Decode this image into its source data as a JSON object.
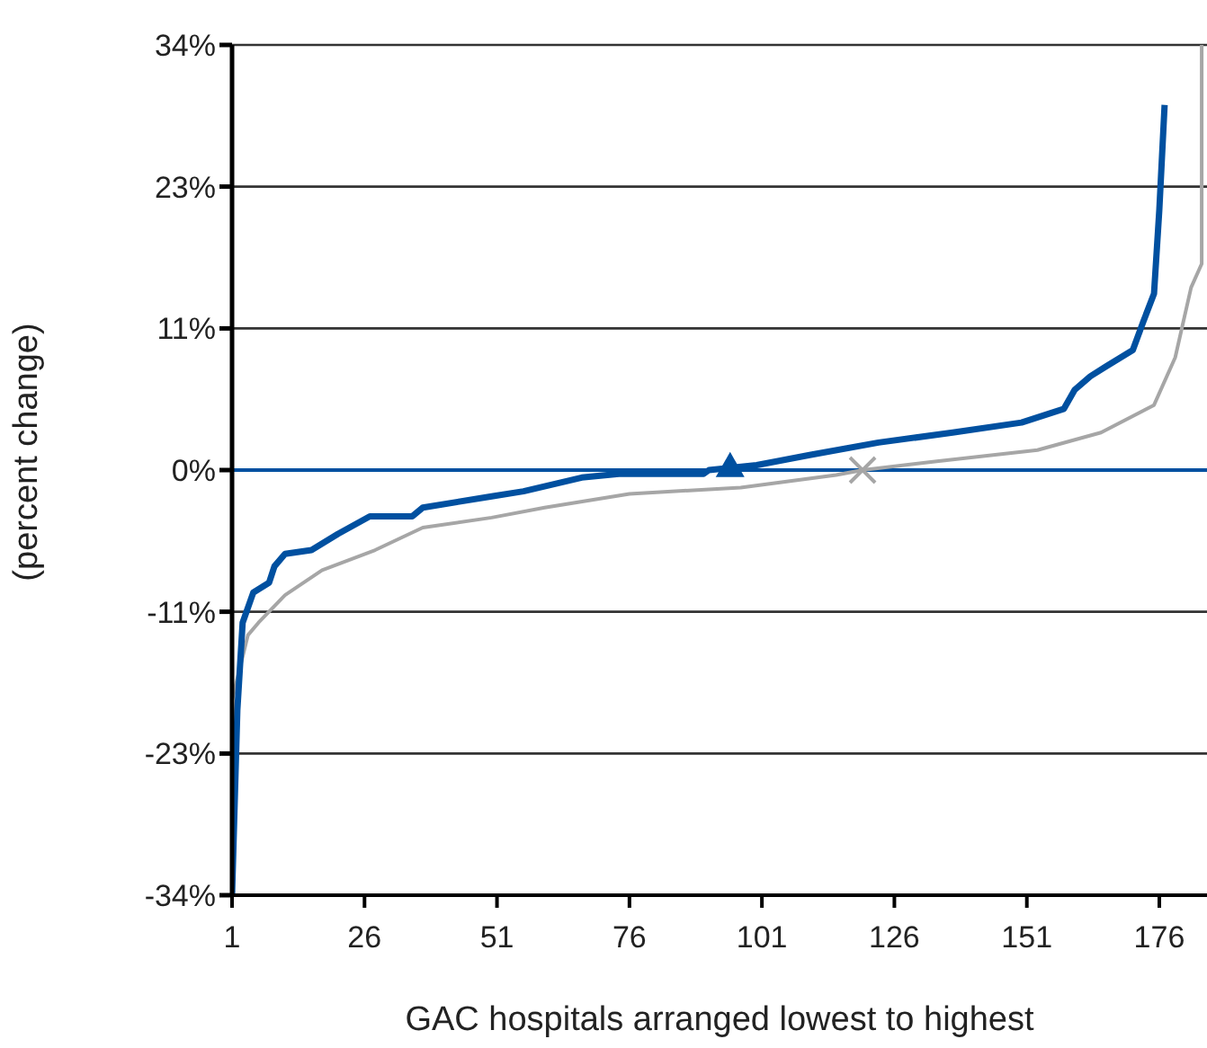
{
  "chart_data": {
    "type": "line",
    "xlabel": "GAC hospitals arranged lowest to highest",
    "ylabel": "(percent change)",
    "xlim": [
      1,
      185
    ],
    "xticks": [
      1,
      26,
      51,
      76,
      101,
      126,
      151,
      176
    ],
    "ylim": [
      -34,
      34
    ],
    "yticks": [
      {
        "value": -34,
        "label": "-34%"
      },
      {
        "value": -22.67,
        "label": "-23%"
      },
      {
        "value": -11.33,
        "label": "-11%"
      },
      {
        "value": 0,
        "label": "0%"
      },
      {
        "value": 11.33,
        "label": "11%"
      },
      {
        "value": 22.67,
        "label": "23%"
      },
      {
        "value": 34,
        "label": "34%"
      }
    ],
    "grid": "y",
    "marker": "none",
    "line_style": "solid",
    "ref_lines": [
      {
        "axis": "y",
        "value": 0,
        "color": "#0050a0"
      }
    ],
    "series": [
      {
        "color": "#a6a6a6",
        "x": [
          1,
          4,
          6,
          11,
          18,
          28,
          37,
          50,
          60,
          76,
          97,
          115,
          120,
          134,
          153,
          165,
          175,
          179,
          182,
          184,
          184
        ],
        "values": [
          -18.4,
          -13.2,
          -12.2,
          -10,
          -8,
          -6.4,
          -4.6,
          -3.8,
          -3,
          -1.9,
          -1.4,
          -0.4,
          0,
          0.7,
          1.6,
          3,
          5.2,
          9,
          14.6,
          16.5,
          34
        ]
      },
      {
        "color": "#0050a0",
        "x": [
          1,
          2,
          3,
          5,
          8,
          9,
          11,
          16,
          21,
          27,
          35,
          37,
          50,
          56,
          67,
          74,
          90,
          91,
          100,
          110,
          123,
          137,
          150,
          158,
          160,
          163,
          166,
          171,
          173,
          175,
          176,
          177
        ],
        "values": [
          -34,
          -19.2,
          -12.2,
          -9.8,
          -9,
          -7.7,
          -6.7,
          -6.4,
          -5.1,
          -3.7,
          -3.7,
          -3,
          -2.1,
          -1.7,
          -0.6,
          -0.3,
          -0.3,
          0,
          0.4,
          1.2,
          2.2,
          3,
          3.8,
          4.9,
          6.4,
          7.5,
          8.3,
          9.6,
          11.9,
          14.1,
          20.8,
          29.2
        ]
      },
      {
        "type": "scatter",
        "color": "#0050a0",
        "marker": "triangle",
        "x": [
          95
        ],
        "values": [
          0.3
        ]
      },
      {
        "type": "scatter",
        "color": "#a6a6a6",
        "marker": "cross",
        "x": [
          120
        ],
        "values": [
          0
        ]
      }
    ]
  }
}
